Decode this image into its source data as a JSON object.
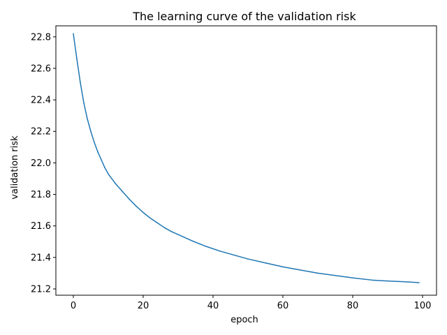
{
  "chart_data": {
    "type": "line",
    "title": "The learning curve of the validation risk",
    "xlabel": "epoch",
    "ylabel": "validation risk",
    "xlim": [
      -5,
      104
    ],
    "ylim": [
      21.16,
      22.87
    ],
    "xticks": [
      0,
      20,
      40,
      60,
      80,
      100
    ],
    "yticks": [
      21.2,
      21.4,
      21.6,
      21.8,
      22.0,
      22.2,
      22.4,
      22.6,
      22.8
    ],
    "xtick_labels": [
      "0",
      "20",
      "40",
      "60",
      "80",
      "100"
    ],
    "ytick_labels": [
      "21.2",
      "21.4",
      "21.6",
      "21.8",
      "22.0",
      "22.2",
      "22.4",
      "22.6",
      "22.8"
    ],
    "grid": false,
    "line_color": "#1f77b4",
    "series": [
      {
        "x": [
          0,
          1,
          2,
          3,
          4,
          5,
          6,
          7,
          8,
          9,
          10,
          12,
          14,
          16,
          18,
          20,
          22,
          24,
          26,
          28,
          30,
          34,
          38,
          42,
          46,
          50,
          55,
          60,
          65,
          70,
          75,
          80,
          86,
          90,
          95,
          99
        ],
        "values": [
          22.82,
          22.66,
          22.51,
          22.38,
          22.28,
          22.2,
          22.13,
          22.07,
          22.02,
          21.97,
          21.93,
          21.87,
          21.82,
          21.77,
          21.725,
          21.685,
          21.65,
          21.62,
          21.59,
          21.565,
          21.545,
          21.505,
          21.47,
          21.44,
          21.415,
          21.39,
          21.365,
          21.34,
          21.32,
          21.3,
          21.285,
          21.27,
          21.255,
          21.25,
          21.245,
          21.24
        ]
      }
    ]
  }
}
